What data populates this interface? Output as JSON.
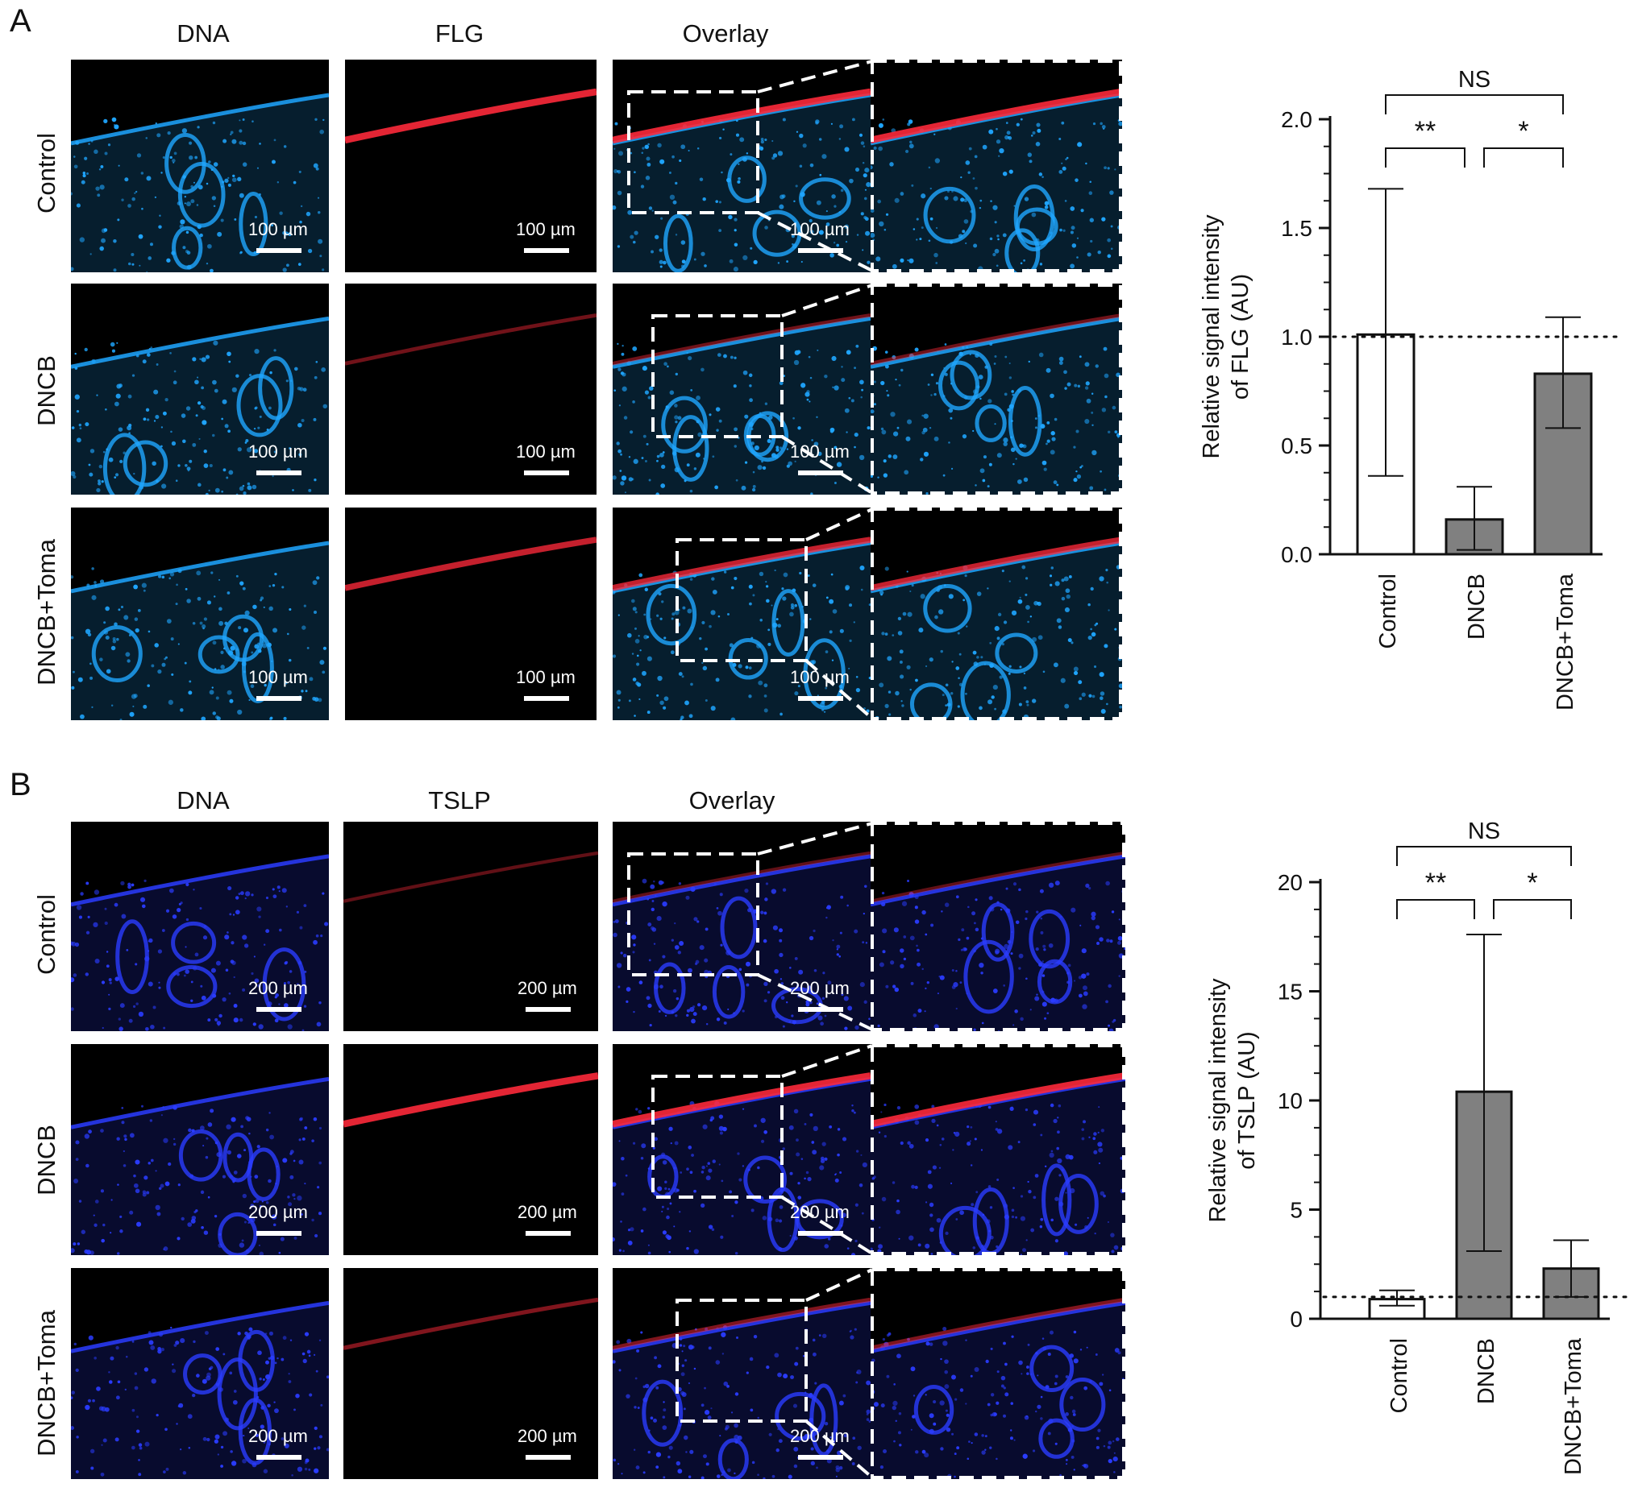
{
  "panels": [
    {
      "letter": "A",
      "columns": [
        "DNA",
        "FLG",
        "Overlay"
      ],
      "rows": [
        "Control",
        "DNCB",
        "DNCB+Toma"
      ],
      "scale_labels": [
        [
          "100 µm",
          "100 µm",
          "100 µm"
        ],
        [
          "100 µm",
          "100 µm",
          "100 µm"
        ],
        [
          "100 µm",
          "100 µm",
          "100 µm"
        ]
      ]
    },
    {
      "letter": "B",
      "columns": [
        "DNA",
        "TSLP",
        "Overlay"
      ],
      "rows": [
        "Control",
        "DNCB",
        "DNCB+Toma"
      ],
      "scale_labels": [
        [
          "200 µm",
          "200 µm",
          "200 µm"
        ],
        [
          "200 µm",
          "200 µm",
          "200 µm"
        ],
        [
          "200 µm",
          "200 µm",
          "200 µm"
        ]
      ]
    }
  ],
  "colors": {
    "nucleus_cyan": "#1fa6ff",
    "nucleus_blue": "#2a3cff",
    "stain_red": "#ff2a3a",
    "bar_gray": "#808080",
    "bar_white": "#ffffff"
  },
  "chart_data": [
    {
      "type": "bar",
      "categories": [
        "Control",
        "DNCB",
        "DNCB+Toma"
      ],
      "values": [
        1.01,
        0.16,
        0.83
      ],
      "error_low": [
        0.36,
        0.02,
        0.58
      ],
      "error_high": [
        1.68,
        0.31,
        1.09
      ],
      "bar_fills": [
        "#ffffff",
        "#808080",
        "#808080"
      ],
      "ylabel_lines": [
        "Relative signal intensity",
        "of FLG (AU)"
      ],
      "ylim": [
        0,
        2.0
      ],
      "yticks": [
        "0.0",
        "0.5",
        "1.0",
        "1.5",
        "2.0"
      ],
      "reference_line": 1.0,
      "significance": [
        {
          "from": 0,
          "to": 1,
          "label": "**"
        },
        {
          "from": 1,
          "to": 2,
          "label": "*"
        },
        {
          "from": 0,
          "to": 2,
          "label": "NS"
        }
      ]
    },
    {
      "type": "bar",
      "categories": [
        "Control",
        "DNCB",
        "DNCB+Toma"
      ],
      "values": [
        0.9,
        10.4,
        2.3
      ],
      "error_low": [
        0.6,
        3.1,
        1.0
      ],
      "error_high": [
        1.3,
        17.6,
        3.6
      ],
      "bar_fills": [
        "#ffffff",
        "#808080",
        "#808080"
      ],
      "ylabel_lines": [
        "Relative signal intensity",
        "of TSLP (AU)"
      ],
      "ylim": [
        0,
        20
      ],
      "yticks": [
        "0",
        "5",
        "10",
        "15",
        "20"
      ],
      "reference_line": 1.0,
      "significance": [
        {
          "from": 0,
          "to": 1,
          "label": "**"
        },
        {
          "from": 1,
          "to": 2,
          "label": "*"
        },
        {
          "from": 0,
          "to": 2,
          "label": "NS"
        }
      ]
    }
  ]
}
